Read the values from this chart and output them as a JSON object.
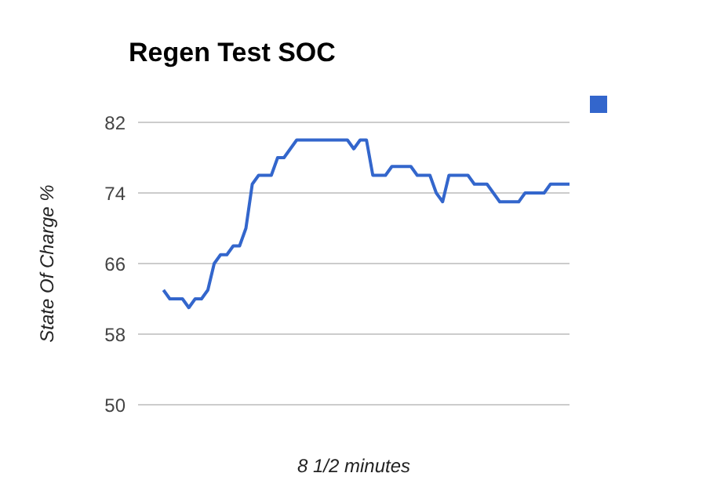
{
  "chart_data": {
    "type": "line",
    "title": "Regen Test SOC",
    "xlabel": "8 1/2 minutes",
    "ylabel": "State Of Charge %",
    "categories": [
      null,
      null,
      null,
      null,
      null,
      null,
      null,
      null,
      null,
      null,
      null,
      null,
      null,
      null,
      null,
      null,
      null,
      null,
      null,
      null,
      null,
      null,
      null,
      null,
      null,
      null,
      null,
      null,
      null,
      null,
      null,
      null,
      null,
      null,
      null,
      null,
      null,
      null,
      null,
      null,
      null,
      null,
      null,
      null,
      null,
      null,
      null,
      null,
      null,
      null,
      null,
      null,
      null,
      null,
      null,
      null,
      null,
      null,
      null,
      null,
      null,
      null,
      null,
      null,
      null
    ],
    "series": [
      {
        "color": "#3366cc",
        "values": [
          63,
          62,
          62,
          62,
          61,
          62,
          62,
          63,
          66,
          67,
          67,
          68,
          68,
          70,
          75,
          76,
          76,
          76,
          78,
          78,
          79,
          80,
          80,
          80,
          80,
          80,
          80,
          80,
          80,
          80,
          79,
          80,
          80,
          76,
          76,
          76,
          77,
          77,
          77,
          77,
          76,
          76,
          76,
          74,
          73,
          76,
          76,
          76,
          76,
          75,
          75,
          75,
          74,
          73,
          73,
          73,
          73,
          74,
          74,
          74,
          74,
          75,
          75,
          75,
          75
        ]
      }
    ],
    "ylim": [
      50,
      82
    ],
    "yticks": [
      50,
      58,
      66,
      74,
      82
    ],
    "grid": "y",
    "marker": "none",
    "line_style": "solid"
  }
}
